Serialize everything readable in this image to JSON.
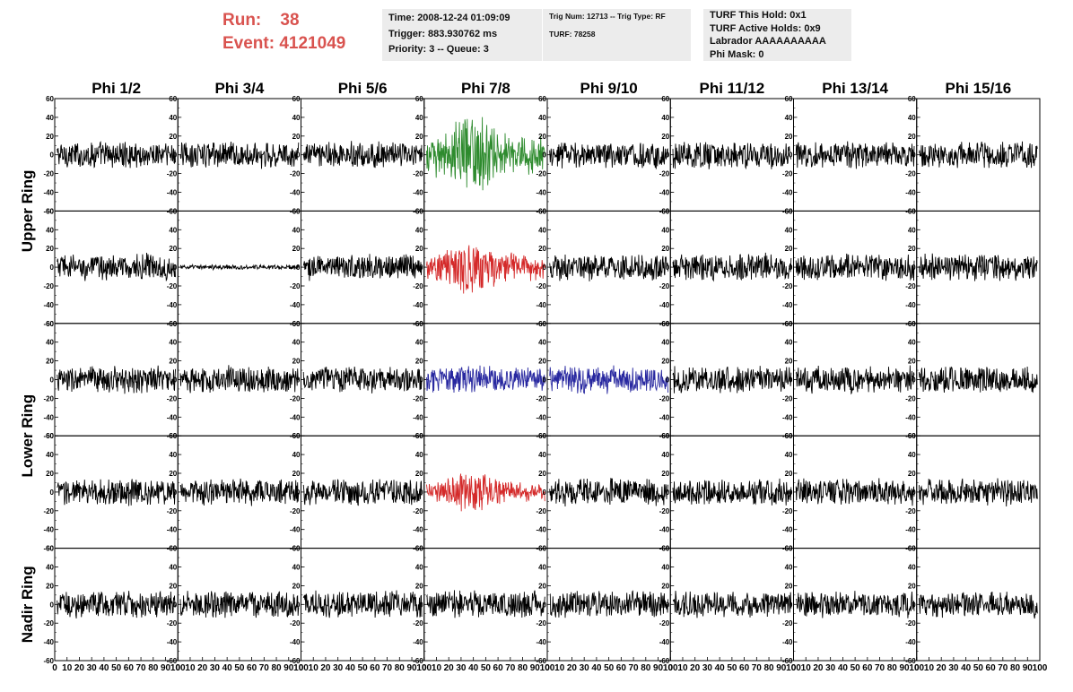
{
  "header": {
    "run_label": "Run:",
    "run_value": "38",
    "event_label": "Event:",
    "event_value": "4121049",
    "time_box": [
      "Time: 2008-12-24 01:09:09",
      "Trigger: 883.930762 ms",
      "Priority: 3 -- Queue: 3"
    ],
    "trig_box": [
      "Trig Num: 12713 -- Trig Type: RF",
      "",
      "TURF: 78258"
    ],
    "turf_box": [
      "TURF This Hold: 0x1",
      "TURF Active Holds: 0x9",
      "Labrador AAAAAAAAAA",
      "Phi Mask: 0"
    ]
  },
  "chart_data": {
    "type": "line",
    "title": "",
    "columns": [
      "Phi 1/2",
      "Phi 3/4",
      "Phi 5/6",
      "Phi 7/8",
      "Phi 9/10",
      "Phi 11/12",
      "Phi 13/14",
      "Phi 15/16"
    ],
    "ring_labels": [
      {
        "name": "Upper Ring",
        "rows": [
          0,
          1
        ]
      },
      {
        "name": "Lower Ring",
        "rows": [
          2,
          3
        ]
      },
      {
        "name": "Nadir Ring",
        "rows": [
          4
        ]
      }
    ],
    "xlim": [
      0,
      100
    ],
    "x_ticks": [
      "0",
      "10",
      "20",
      "30",
      "40",
      "50",
      "60",
      "70",
      "80",
      "90",
      "100"
    ],
    "ylim": [
      -60,
      60
    ],
    "y_ticks": [
      "-60",
      "-40",
      "-20",
      "0",
      "20",
      "40",
      "60"
    ],
    "default_color": "#000000",
    "default_amplitude": 12,
    "samples_per_trace": 260,
    "highlighted_traces": [
      {
        "row": 0,
        "col": 3,
        "color": "#2e8b2e",
        "amplitude": 30
      },
      {
        "row": 1,
        "col": 3,
        "color": "#d42a2a",
        "amplitude": 22
      },
      {
        "row": 1,
        "col": 1,
        "color": "#000000",
        "amplitude": 2
      },
      {
        "row": 2,
        "col": 3,
        "color": "#2828a0",
        "amplitude": 12
      },
      {
        "row": 2,
        "col": 4,
        "color": "#2828a0",
        "amplitude": 12
      },
      {
        "row": 3,
        "col": 3,
        "color": "#d42a2a",
        "amplitude": 16
      }
    ]
  }
}
